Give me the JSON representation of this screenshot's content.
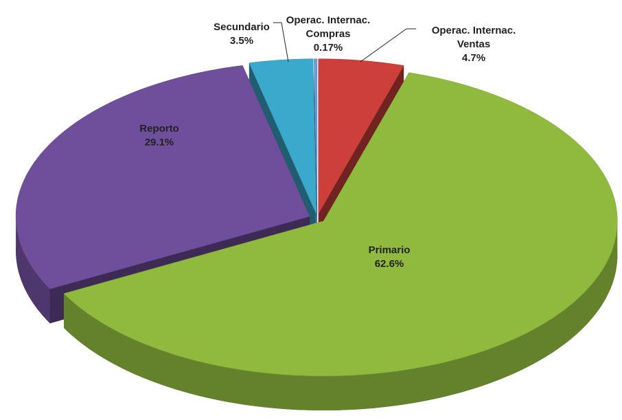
{
  "chart_data": {
    "type": "pie3d",
    "categories": [
      "Operac. Internac. Ventas",
      "Primario",
      "Reporto",
      "Secundario",
      "Operac. Internac. Compras"
    ],
    "values": [
      4.7,
      62.6,
      29.1,
      3.5,
      0.17
    ],
    "value_labels": [
      "4.7%",
      "62.6%",
      "29.1%",
      "3.5%",
      "0.17%"
    ],
    "colors": [
      "#cc3f3a",
      "#8fba3e",
      "#6f4f9c",
      "#3aa9cb",
      "#6b9bd8"
    ]
  }
}
